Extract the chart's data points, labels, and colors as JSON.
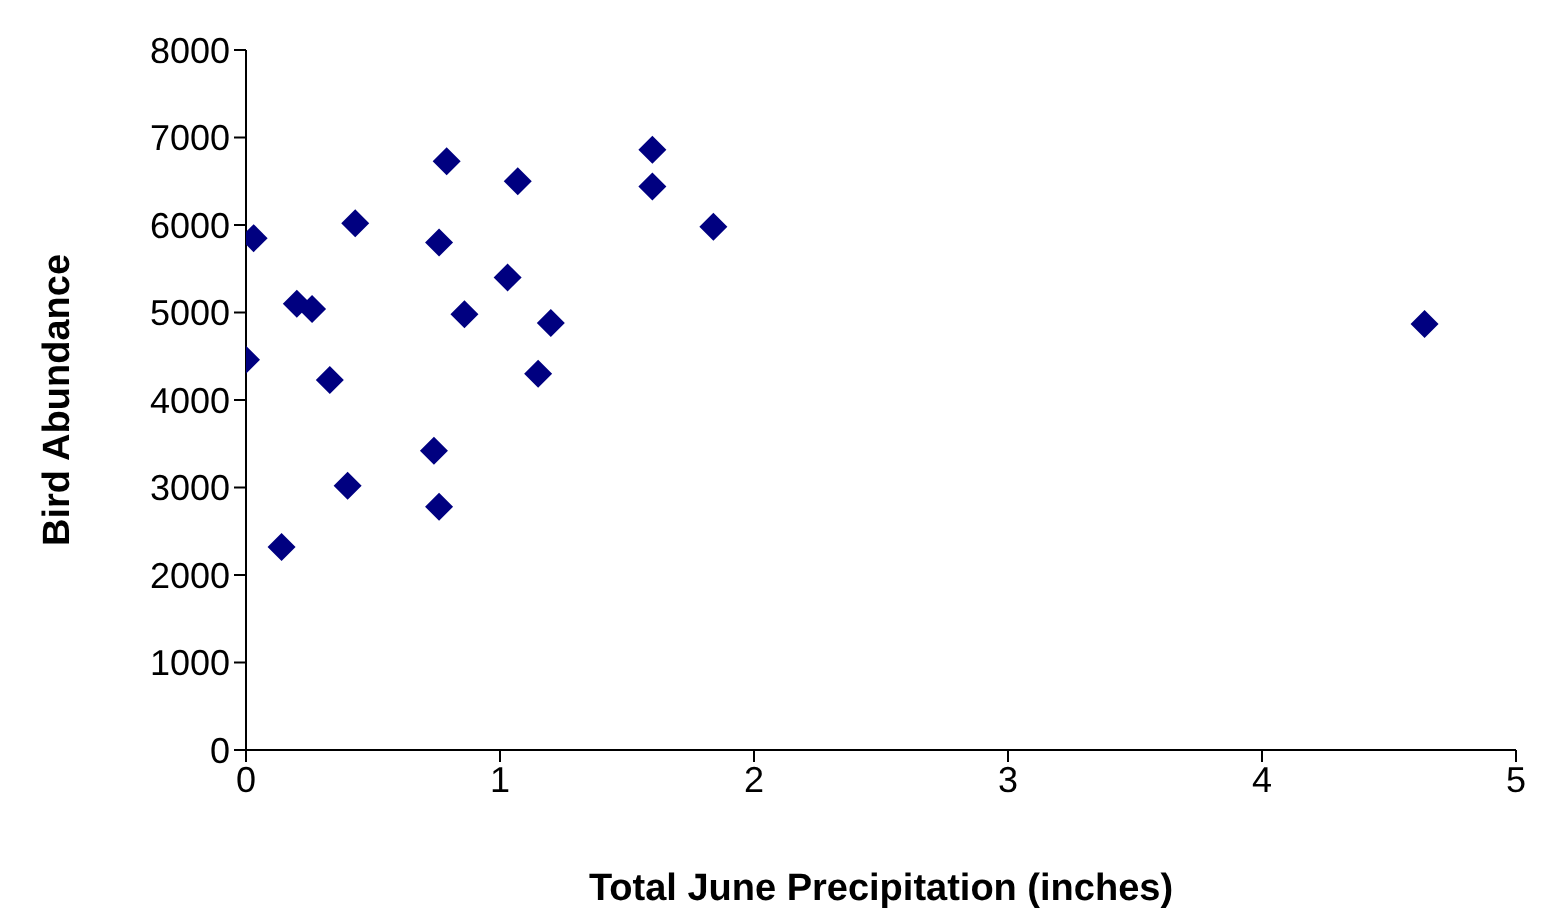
{
  "chart_data": {
    "type": "scatter",
    "xlabel": "Total June Precipitation (inches)",
    "ylabel": "Bird Abundance",
    "x": [
      0.03,
      0,
      0.2,
      0.26,
      0.43,
      0.33,
      0.14,
      0.4,
      0.79,
      0.76,
      0.86,
      0.74,
      0.76,
      1.07,
      1.03,
      1.2,
      1.15,
      1.6,
      1.6,
      1.84,
      4.64
    ],
    "series": [
      {
        "color": "#000080",
        "values": [
          5850,
          4460,
          5100,
          5040,
          6020,
          4230,
          2320,
          3020,
          6730,
          5800,
          4980,
          3420,
          2780,
          6500,
          5400,
          4880,
          4300,
          6860,
          6440,
          5980,
          4870
        ]
      }
    ],
    "xlim": [
      0,
      5
    ],
    "xticks": [
      0,
      1,
      2,
      3,
      4,
      5
    ],
    "ylim": [
      0,
      8000
    ],
    "yticks": [
      0,
      1000,
      2000,
      3000,
      4000,
      5000,
      6000,
      7000,
      8000
    ],
    "grid": false,
    "legend": false,
    "marker": "diamond"
  }
}
